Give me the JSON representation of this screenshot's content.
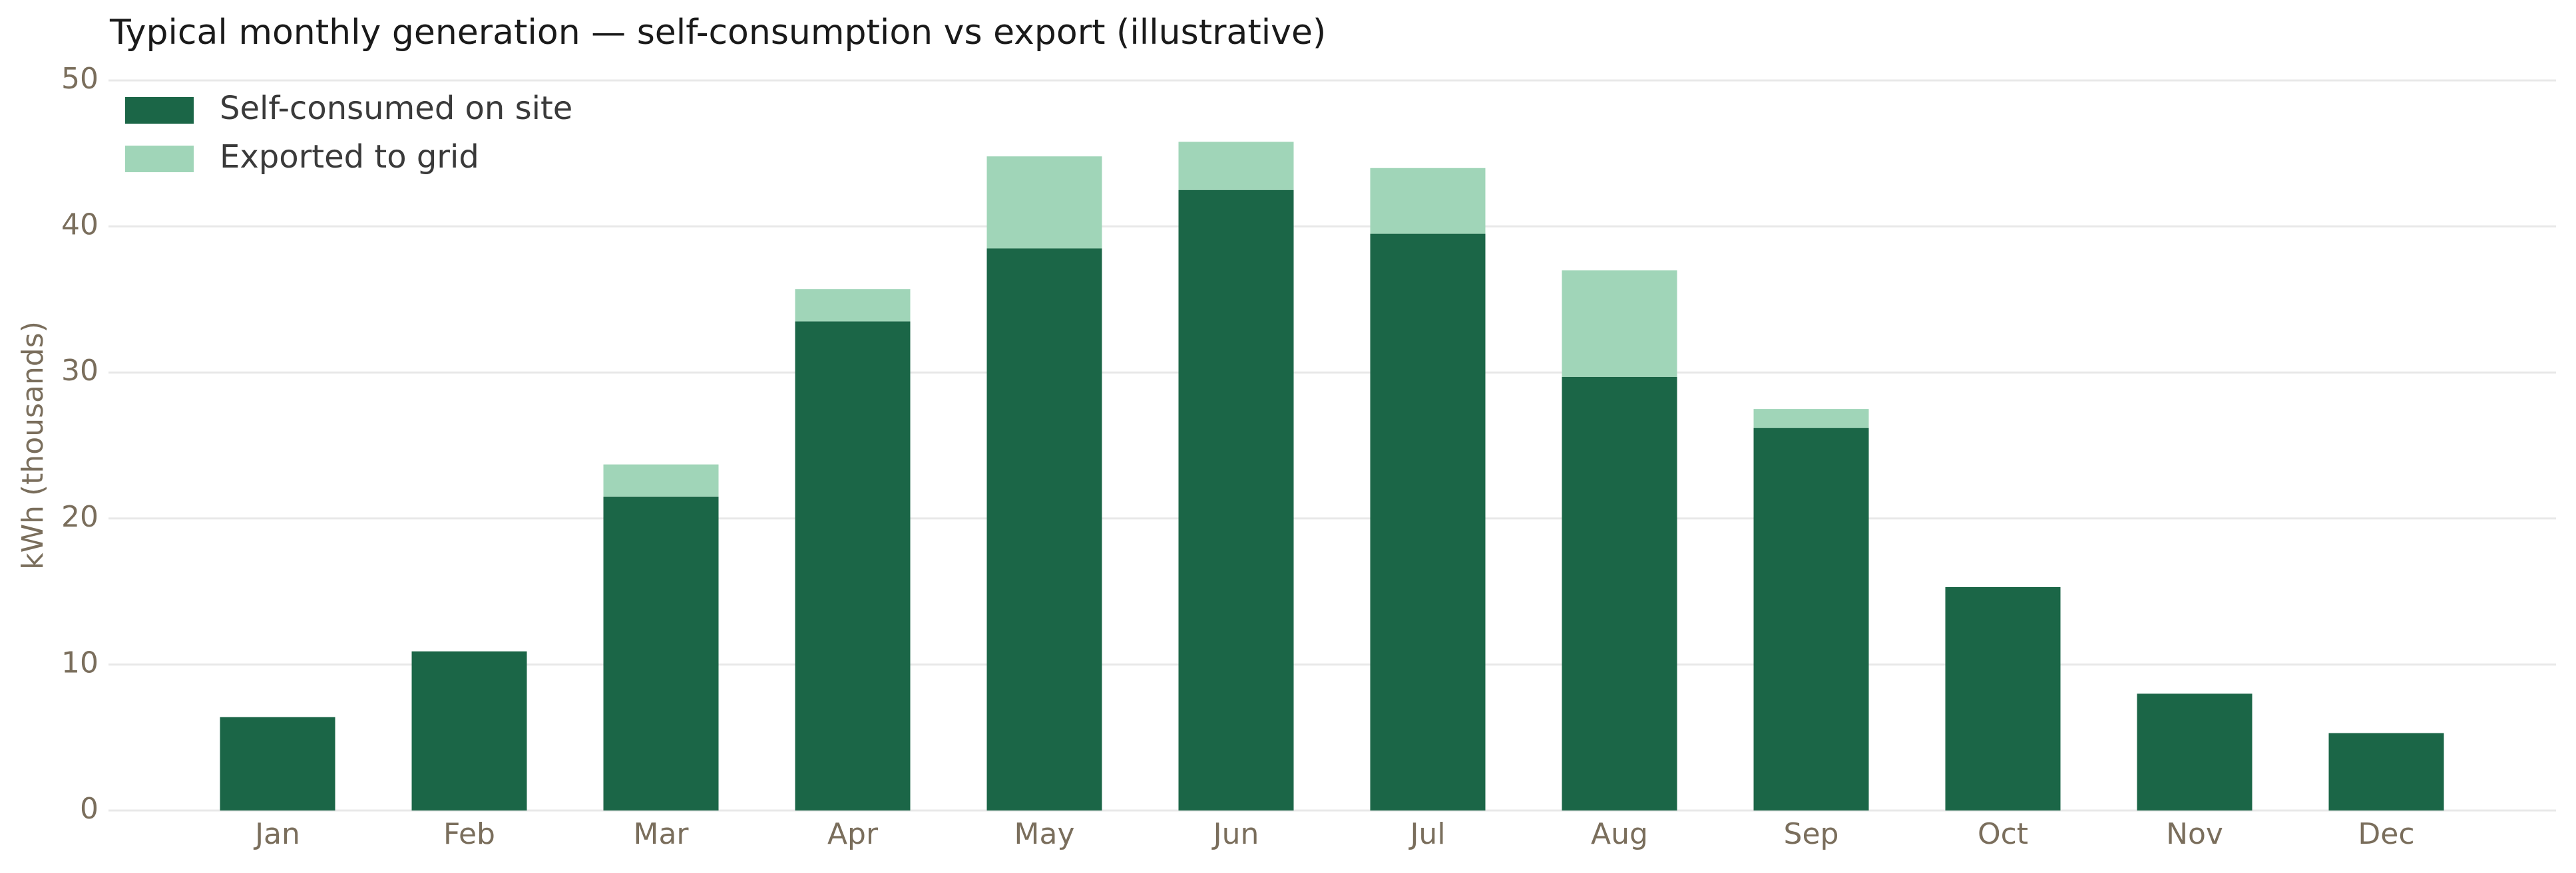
{
  "chart_data": {
    "type": "bar",
    "stacked": true,
    "title": "Typical monthly generation — self-consumption vs export (illustrative)",
    "ylabel": "kWh (thousands)",
    "categories": [
      "Jan",
      "Feb",
      "Mar",
      "Apr",
      "May",
      "Jun",
      "Jul",
      "Aug",
      "Sep",
      "Oct",
      "Nov",
      "Dec"
    ],
    "series": [
      {
        "name": "Self-consumed on site",
        "color": "#1b6647",
        "values": [
          6.4,
          10.9,
          21.5,
          33.5,
          38.5,
          42.5,
          39.5,
          29.7,
          26.2,
          15.3,
          8.0,
          5.3
        ]
      },
      {
        "name": "Exported to grid",
        "color": "#a0d5b8",
        "values": [
          0,
          0,
          2.2,
          2.2,
          6.3,
          3.3,
          4.5,
          7.3,
          1.3,
          0,
          0,
          0
        ]
      }
    ],
    "ylim": [
      0,
      50
    ],
    "yticks": [
      0,
      10,
      20,
      30,
      40,
      50
    ],
    "grid": true,
    "legend": "upper left"
  }
}
